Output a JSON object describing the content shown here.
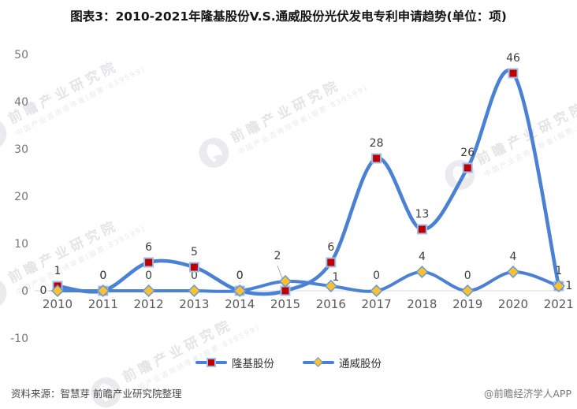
{
  "title": "图表3：2010-2021年隆基股份V.S.通威股份光伏发电专利申请趋势(单位：项)",
  "watermark": {
    "text": "前瞻产业研究院",
    "subtext": "中国产业咨询领导者(股票:839599)"
  },
  "footer": {
    "source": "资料来源：智慧芽 前瞻产业研究院整理",
    "credit": "@前瞻经济学人APP"
  },
  "chart_data": {
    "type": "line",
    "title": "图表3：2010-2021年隆基股份V.S.通威股份光伏发电专利申请趋势(单位：项)",
    "unit": "项",
    "categories": [
      "2010",
      "2011",
      "2012",
      "2013",
      "2014",
      "2015",
      "2016",
      "2017",
      "2018",
      "2019",
      "2020",
      "2021"
    ],
    "series": [
      {
        "name": "隆基股份",
        "marker": "square",
        "marker_color": "#c00000",
        "marker_stroke": "#9dbfea",
        "values": [
          1,
          0,
          6,
          5,
          0,
          0,
          6,
          28,
          13,
          26,
          46,
          1
        ]
      },
      {
        "name": "通威股份",
        "marker": "diamond",
        "marker_color": "#fdc02f",
        "marker_stroke": "#6298dc",
        "values": [
          0,
          0,
          0,
          0,
          0,
          2,
          1,
          0,
          4,
          0,
          4,
          1
        ]
      }
    ],
    "line_color": "#4a81d4",
    "yticks": [
      50,
      40,
      30,
      20,
      10,
      0,
      -10
    ],
    "ylim": [
      -10,
      50
    ],
    "grid": false,
    "legend_position": "bottom",
    "colors": {
      "axis_line": "#d9d9d9",
      "y_tick_label": "#767676",
      "x_tick_label": "#595959",
      "data_label": "#3d3d3d",
      "leader_line": "#aaaaaa"
    }
  }
}
